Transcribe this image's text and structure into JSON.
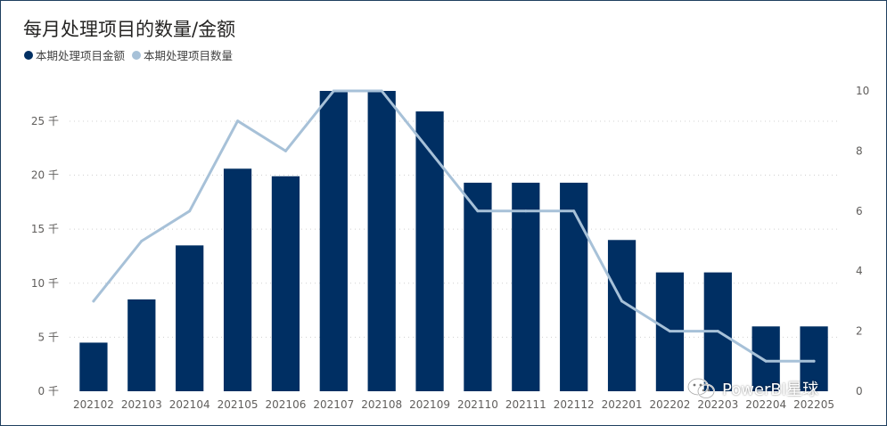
{
  "colors": {
    "bar": "#002f63",
    "line": "#a7c1d8",
    "grid": "#d0d0d0",
    "frame": "#1f3f5f"
  },
  "chart_data": {
    "type": "bar",
    "title": "每月处理项目的数量/金额",
    "legend": [
      "本期处理项目金额",
      "本期处理项目数量"
    ],
    "legend_position": "top-left",
    "grid": true,
    "categories": [
      "202102",
      "202103",
      "202104",
      "202105",
      "202106",
      "202107",
      "202108",
      "202109",
      "202110",
      "202111",
      "202112",
      "202201",
      "202202",
      "202203",
      "202204",
      "202205"
    ],
    "series": [
      {
        "name": "本期处理项目金额",
        "type": "bar",
        "axis": "left",
        "values": [
          4500,
          8500,
          13500,
          20600,
          19900,
          27800,
          27800,
          25900,
          19300,
          19300,
          19300,
          14000,
          11000,
          11000,
          6000,
          6000
        ]
      },
      {
        "name": "本期处理项目数量",
        "type": "line",
        "axis": "right",
        "values": [
          3,
          5,
          6,
          9,
          8,
          10,
          10,
          8,
          6,
          6,
          6,
          3,
          2,
          2,
          1,
          1
        ]
      }
    ],
    "y_left": {
      "lim": [
        0,
        27800
      ],
      "ticks": [
        0,
        5000,
        10000,
        15000,
        20000,
        25000
      ],
      "tick_labels": [
        "0 千",
        "5 千",
        "10 千",
        "15 千",
        "20 千",
        "25 千"
      ]
    },
    "y_right": {
      "lim": [
        0,
        10
      ],
      "ticks": [
        0,
        2,
        4,
        6,
        8,
        10
      ],
      "tick_labels": [
        "0",
        "2",
        "4",
        "6",
        "8",
        "10"
      ]
    }
  },
  "watermark": {
    "text": "PowerBI星球",
    "icon": "wechat-icon"
  }
}
